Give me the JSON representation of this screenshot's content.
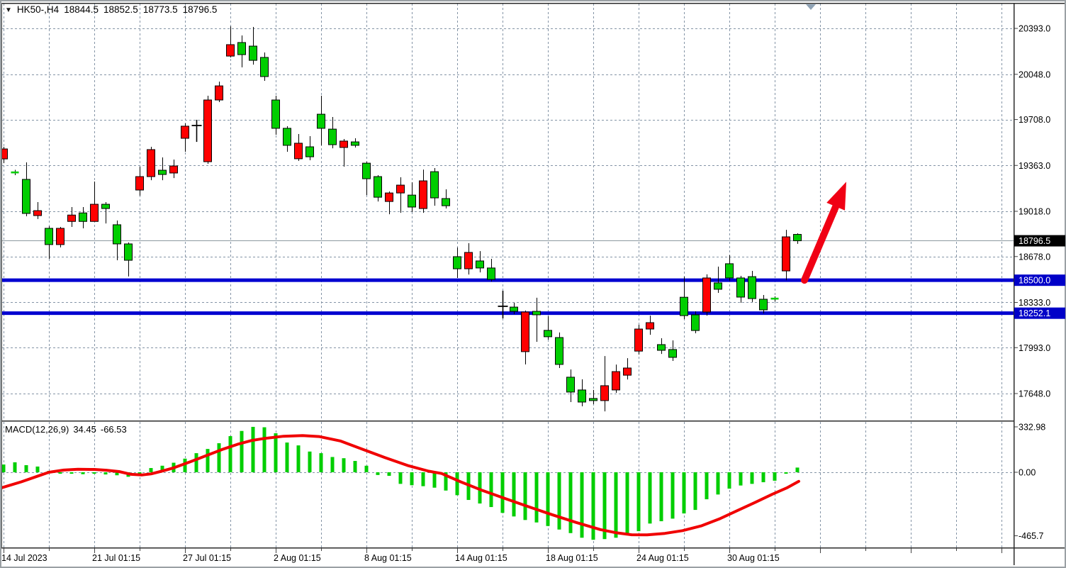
{
  "title": {
    "symbol_period": "HK50-,H4",
    "open": "18844.5",
    "high": "18852.5",
    "low": "18773.5",
    "close": "18796.5"
  },
  "indicator": {
    "label": "MACD(12,26,9)",
    "value": "34.45",
    "signal": "-66.53"
  },
  "colors": {
    "bull": "#ff0000",
    "bear": "#00ce00",
    "candle_outline": "#000000",
    "doji": "#000000",
    "macd_hist": "#00ce00",
    "macd_signal": "#f00000",
    "support_line": "#0000d0",
    "grid": "#8494a6",
    "current_price_line": "#8c9aa0",
    "tag_current_bg": "#000000",
    "tag_support_bg": "#0000c8",
    "tag_text": "#ffffff",
    "axis_text": "#000000",
    "pane_border": "#2b2b2b",
    "window_frame": "#9aa0a4",
    "shift_marker": "#8fa3b5",
    "arrow": "#f00014"
  },
  "chart_data": {
    "type": "candlestick",
    "symbol": "HK50-",
    "timeframe": "H4",
    "legend_note": "red=bull, green=bear, k=black doji cross",
    "current_price": 18796.5,
    "support_levels": [
      "18500.0",
      "18252.1"
    ],
    "y_axis_ticks": [
      "20393.0",
      "20048.0",
      "19708.0",
      "19363.0",
      "19018.0",
      "18678.0",
      "18333.0",
      "17993.0",
      "17648.0"
    ],
    "x_axis_ticks": [
      "14 Jul 2023",
      "21 Jul 01:15",
      "27 Jul 01:15",
      "2 Aug 01:15",
      "8 Aug 01:15",
      "14 Aug 01:15",
      "18 Aug 01:15",
      "24 Aug 01:15",
      "30 Aug 01:15"
    ],
    "current_price_tag": "18796.5",
    "candles": [
      [
        19412,
        19503,
        19380,
        19487,
        "r"
      ],
      [
        19311,
        19330,
        19290,
        19311,
        "g"
      ],
      [
        19258,
        19386,
        18981,
        19002,
        "g"
      ],
      [
        18986,
        19087,
        18960,
        19023,
        "r"
      ],
      [
        18890,
        18906,
        18661,
        18768,
        "g"
      ],
      [
        18768,
        18901,
        18747,
        18890,
        "r"
      ],
      [
        18942,
        19050,
        18901,
        18990,
        "r"
      ],
      [
        19006,
        19050,
        18890,
        18942,
        "g"
      ],
      [
        18942,
        19242,
        18942,
        19071,
        "r"
      ],
      [
        19071,
        19087,
        18927,
        19039,
        "g"
      ],
      [
        18917,
        18949,
        18650,
        18773,
        "g"
      ],
      [
        18773,
        18784,
        18528,
        18650,
        "g"
      ],
      [
        19178,
        19354,
        19135,
        19279,
        "r"
      ],
      [
        19279,
        19503,
        19252,
        19482,
        "r"
      ],
      [
        19327,
        19423,
        19252,
        19295,
        "g"
      ],
      [
        19306,
        19407,
        19268,
        19359,
        "r"
      ],
      [
        19567,
        19679,
        19466,
        19658,
        "r"
      ],
      [
        19663,
        19706,
        19540,
        19663,
        "k"
      ],
      [
        19391,
        19887,
        19375,
        19855,
        "r"
      ],
      [
        19855,
        19993,
        19839,
        19961,
        "r"
      ],
      [
        20185,
        20409,
        20175,
        20271,
        "r"
      ],
      [
        20287,
        20340,
        20100,
        20196,
        "g"
      ],
      [
        20260,
        20404,
        20121,
        20153,
        "g"
      ],
      [
        20175,
        20212,
        19999,
        20031,
        "g"
      ],
      [
        19855,
        19887,
        19594,
        19642,
        "g"
      ],
      [
        19642,
        19658,
        19466,
        19514,
        "g"
      ],
      [
        19413,
        19599,
        19397,
        19530,
        "r"
      ],
      [
        19503,
        19583,
        19402,
        19428,
        "g"
      ],
      [
        19748,
        19887,
        19514,
        19642,
        "g"
      ],
      [
        19636,
        19727,
        19492,
        19519,
        "g"
      ],
      [
        19498,
        19562,
        19354,
        19546,
        "r"
      ],
      [
        19540,
        19567,
        19498,
        19514,
        "g"
      ],
      [
        19380,
        19391,
        19140,
        19263,
        "g"
      ],
      [
        19279,
        19290,
        19092,
        19124,
        "g"
      ],
      [
        19092,
        19167,
        18996,
        19156,
        "r"
      ],
      [
        19156,
        19274,
        19007,
        19215,
        "r"
      ],
      [
        19140,
        19236,
        19013,
        19050,
        "g"
      ],
      [
        19039,
        19332,
        19007,
        19247,
        "r"
      ],
      [
        19316,
        19343,
        19060,
        19119,
        "g"
      ],
      [
        19114,
        19183,
        19039,
        19060,
        "g"
      ],
      [
        18677,
        18746,
        18517,
        18586,
        "g"
      ],
      [
        18586,
        18779,
        18543,
        18709,
        "r"
      ],
      [
        18645,
        18719,
        18559,
        18592,
        "g"
      ],
      [
        18592,
        18661,
        18490,
        18506,
        "g"
      ],
      [
        18304,
        18421,
        18213,
        18304,
        "k"
      ],
      [
        18298,
        18330,
        18245,
        18266,
        "g"
      ],
      [
        17963,
        18272,
        17867,
        18261,
        "r"
      ],
      [
        18266,
        18368,
        18037,
        18240,
        "g"
      ],
      [
        18123,
        18229,
        18053,
        18075,
        "g"
      ],
      [
        18069,
        18107,
        17840,
        17867,
        "g"
      ],
      [
        17771,
        17829,
        17584,
        17659,
        "g"
      ],
      [
        17675,
        17755,
        17552,
        17584,
        "g"
      ],
      [
        17611,
        17675,
        17568,
        17595,
        "g"
      ],
      [
        17595,
        17930,
        17514,
        17707,
        "r"
      ],
      [
        17675,
        17866,
        17653,
        17813,
        "r"
      ],
      [
        17786,
        17914,
        17754,
        17840,
        "r"
      ],
      [
        17967,
        18165,
        17941,
        18133,
        "r"
      ],
      [
        18133,
        18234,
        18090,
        18181,
        "r"
      ],
      [
        18016,
        18064,
        17946,
        17973,
        "g"
      ],
      [
        17979,
        18048,
        17893,
        17920,
        "g"
      ],
      [
        18372,
        18527,
        18208,
        18234,
        "g"
      ],
      [
        18240,
        18266,
        18101,
        18122,
        "g"
      ],
      [
        18261,
        18544,
        18234,
        18517,
        "r"
      ],
      [
        18480,
        18602,
        18405,
        18432,
        "g"
      ],
      [
        18624,
        18688,
        18496,
        18517,
        "g"
      ],
      [
        18517,
        18533,
        18330,
        18373,
        "g"
      ],
      [
        18527,
        18570,
        18336,
        18362,
        "g"
      ],
      [
        18357,
        18389,
        18250,
        18277,
        "g"
      ],
      [
        18362,
        18378,
        18340,
        18352,
        "g"
      ],
      [
        18570,
        18879,
        18500,
        18826,
        "r"
      ],
      [
        18844.5,
        18852.5,
        18773.5,
        18796.5,
        "g"
      ]
    ],
    "trend_arrow": {
      "from_price": 18500,
      "to_price": 19240,
      "direction": "up"
    },
    "macd": {
      "label": "MACD(12,26,9)",
      "value": 34.45,
      "signal_value": -66.53,
      "axis_ticks": [
        "332.98",
        "0.00",
        "-465.7"
      ],
      "histogram": [
        57,
        73,
        52,
        42,
        10,
        -5,
        -8,
        -14,
        -8,
        -16,
        -22,
        -33,
        -12,
        31,
        48,
        70,
        100,
        140,
        171,
        213,
        265,
        303,
        333,
        330,
        286,
        218,
        197,
        152,
        140,
        112,
        103,
        83,
        48,
        -20,
        -26,
        -85,
        -95,
        -102,
        -113,
        -134,
        -168,
        -203,
        -229,
        -255,
        -298,
        -324,
        -350,
        -368,
        -394,
        -420,
        -446,
        -480,
        -495,
        -490,
        -480,
        -463,
        -432,
        -376,
        -359,
        -340,
        -302,
        -276,
        -198,
        -163,
        -120,
        -97,
        -85,
        -73,
        -62,
        -5,
        34.45
      ],
      "signal_line_points": [
        [
          2,
          -114
        ],
        [
          30,
          -70
        ],
        [
          55,
          -25
        ],
        [
          69,
          0
        ],
        [
          90,
          16
        ],
        [
          110,
          22
        ],
        [
          133,
          21
        ],
        [
          150,
          15
        ],
        [
          168,
          5
        ],
        [
          185,
          -15
        ],
        [
          200,
          -20
        ],
        [
          213,
          -12
        ],
        [
          228,
          8
        ],
        [
          245,
          32
        ],
        [
          270,
          80
        ],
        [
          293,
          126
        ],
        [
          315,
          170
        ],
        [
          335,
          205
        ],
        [
          355,
          233
        ],
        [
          373,
          248
        ],
        [
          400,
          264
        ],
        [
          427,
          269
        ],
        [
          450,
          262
        ],
        [
          480,
          230
        ],
        [
          512,
          168
        ],
        [
          543,
          108
        ],
        [
          575,
          50
        ],
        [
          605,
          8
        ],
        [
          623,
          -9
        ],
        [
          650,
          -70
        ],
        [
          681,
          -134
        ],
        [
          714,
          -195
        ],
        [
          747,
          -255
        ],
        [
          780,
          -313
        ],
        [
          813,
          -368
        ],
        [
          847,
          -420
        ],
        [
          870,
          -444
        ],
        [
          891,
          -458
        ],
        [
          913,
          -459
        ],
        [
          938,
          -448
        ],
        [
          963,
          -428
        ],
        [
          990,
          -392
        ],
        [
          1015,
          -342
        ],
        [
          1040,
          -282
        ],
        [
          1065,
          -222
        ],
        [
          1090,
          -160
        ],
        [
          1110,
          -115
        ],
        [
          1127,
          -66.5
        ]
      ]
    }
  }
}
